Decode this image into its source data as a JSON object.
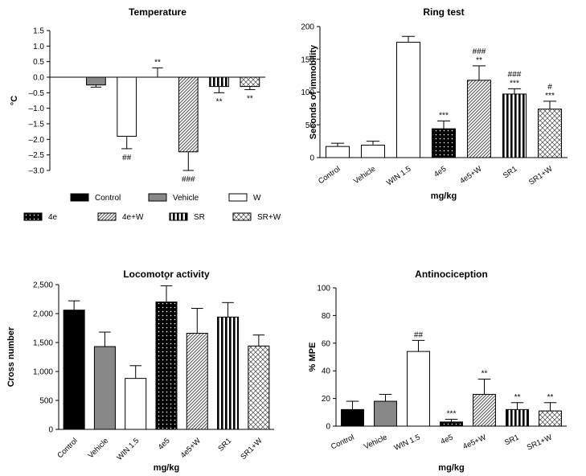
{
  "legend": {
    "items": [
      {
        "label": "Control",
        "fill": "black"
      },
      {
        "label": "Vehicle",
        "fill": "gray"
      },
      {
        "label": "W",
        "fill": "white"
      },
      {
        "label": "4e",
        "fill": "dots"
      },
      {
        "label": "4e+W",
        "fill": "hatch"
      },
      {
        "label": "SR",
        "fill": "vstripes"
      },
      {
        "label": "SR+W",
        "fill": "cross"
      }
    ]
  },
  "chart_data": [
    {
      "type": "bar",
      "title": "Temperature",
      "xlabel": "",
      "ylabel": "°C",
      "ylim": [
        -3.0,
        1.5
      ],
      "yticks": [
        1.5,
        1.0,
        0.5,
        0.0,
        -0.5,
        -1.0,
        -1.5,
        -2.0,
        -2.5,
        -3.0
      ],
      "ytick_labels": [
        "1.5",
        "1.0",
        "0.5",
        "0.0",
        "–0.5",
        "–1.0",
        "–1.5",
        "–2.0",
        "–2.5",
        "–3.0"
      ],
      "categories": [
        "Control",
        "Vehicle",
        "W",
        "4e",
        "4e+W",
        "SR",
        "SR+W"
      ],
      "show_category_labels": false,
      "values": [
        0.0,
        -0.25,
        -1.9,
        0.0,
        -2.4,
        -0.3,
        -0.3
      ],
      "errors": [
        0.0,
        0.07,
        0.4,
        0.3,
        0.6,
        0.2,
        0.1
      ],
      "fills": [
        "black",
        "gray",
        "white",
        "dots",
        "hatch",
        "vstripes",
        "cross"
      ],
      "annotations": [
        "",
        "",
        "##",
        "**",
        "###",
        "**",
        "**"
      ],
      "annotation_position": [
        "above",
        "above",
        "below",
        "above",
        "below",
        "below",
        "below"
      ]
    },
    {
      "type": "bar",
      "title": "Ring test",
      "xlabel": "mg/kg",
      "ylabel": "Seconds of immobility",
      "ylim": [
        0,
        200
      ],
      "yticks": [
        0,
        50,
        100,
        150,
        200
      ],
      "ytick_labels": [
        "0",
        "50",
        "100",
        "150",
        "200"
      ],
      "categories": [
        "Control",
        "Vehicle",
        "WIN 1.5",
        "4e5",
        "4e5+W",
        "SR1",
        "SR1+W"
      ],
      "show_category_labels": true,
      "values": [
        17,
        19,
        176,
        44,
        118,
        97,
        74
      ],
      "errors": [
        5,
        6,
        9,
        12,
        22,
        8,
        12
      ],
      "fills": [
        "white",
        "white",
        "white",
        "dots",
        "hatch",
        "vstripes",
        "cross"
      ],
      "annotations": [
        "",
        "",
        "",
        "***",
        "###\n**",
        "###\n***",
        "#\n***"
      ],
      "annotation_position": [
        "above",
        "above",
        "above",
        "above",
        "above",
        "above",
        "above"
      ]
    },
    {
      "type": "bar",
      "title": "Locomotor activity",
      "xlabel": "mg/kg",
      "ylabel": "Cross number",
      "ylim": [
        0,
        2500
      ],
      "yticks": [
        0,
        500,
        1000,
        1500,
        2000,
        2500
      ],
      "ytick_labels": [
        "0",
        "500",
        "1,000",
        "1,500",
        "2,000",
        "2,500"
      ],
      "categories": [
        "Control",
        "Vehicle",
        "WIN 1.5",
        "4e5",
        "4e5+W",
        "SR1",
        "SR1+W"
      ],
      "show_category_labels": true,
      "values": [
        2060,
        1430,
        880,
        2200,
        1660,
        1940,
        1440
      ],
      "errors": [
        160,
        250,
        220,
        280,
        430,
        250,
        190
      ],
      "fills": [
        "black",
        "gray",
        "white",
        "dots",
        "hatch",
        "vstripes",
        "cross"
      ],
      "annotations": [
        "",
        "",
        "",
        "*",
        "",
        "",
        ""
      ],
      "annotation_position": [
        "above",
        "above",
        "above",
        "above",
        "above",
        "above",
        "above"
      ]
    },
    {
      "type": "bar",
      "title": "Antinociception",
      "xlabel": "mg/kg",
      "ylabel": "% MPE",
      "ylim": [
        0,
        100
      ],
      "yticks": [
        0,
        20,
        40,
        60,
        80,
        100
      ],
      "ytick_labels": [
        "0",
        "20",
        "40",
        "60",
        "80",
        "100"
      ],
      "categories": [
        "Control",
        "Vehicle",
        "WIN 1.5",
        "4e5",
        "4e5+W",
        "SR1",
        "SR1+W"
      ],
      "show_category_labels": true,
      "values": [
        12,
        18,
        54,
        3,
        23,
        12,
        11
      ],
      "errors": [
        6,
        5,
        8,
        2,
        11,
        5,
        6
      ],
      "fills": [
        "black",
        "gray",
        "white",
        "dots",
        "hatch",
        "vstripes",
        "cross"
      ],
      "annotations": [
        "",
        "",
        "##",
        "***",
        "**",
        "**",
        "**"
      ],
      "annotation_position": [
        "above",
        "above",
        "above",
        "above",
        "above",
        "above",
        "above"
      ]
    }
  ]
}
